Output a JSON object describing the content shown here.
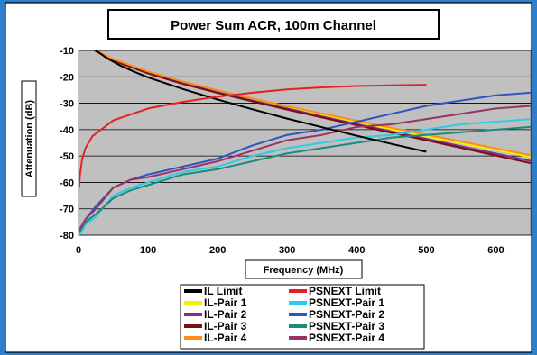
{
  "chart_data": {
    "type": "line",
    "title": "Power Sum ACR, 100m Channel",
    "xlabel": "Frequency (MHz)",
    "ylabel": "Attenuation (dB)",
    "xlim": [
      0,
      650
    ],
    "ylim": [
      -80,
      -10
    ],
    "x_ticks": [
      0,
      100,
      200,
      300,
      400,
      500,
      600
    ],
    "y_ticks": [
      -10,
      -20,
      -30,
      -40,
      -50,
      -60,
      -70,
      -80
    ],
    "grid": "horizontal",
    "legend_position": "bottom",
    "background_color": "#c0c0c0",
    "series": [
      {
        "name": "IL Limit",
        "color": "#000000",
        "x": [
          20,
          40,
          60,
          80,
          100,
          150,
          200,
          250,
          300,
          350,
          400,
          450,
          500
        ],
        "y": [
          -9,
          -12.8,
          -15.7,
          -18.1,
          -20.2,
          -24.6,
          -28.6,
          -32.3,
          -35.8,
          -39.1,
          -42.3,
          -45.4,
          -48.4
        ]
      },
      {
        "name": "PSNEXT Limit",
        "color": "#e82020",
        "x": [
          1,
          2,
          5,
          10,
          20,
          50,
          100,
          150,
          200,
          250,
          300,
          350,
          400,
          450,
          500
        ],
        "y": [
          -62,
          -57.5,
          -51.5,
          -47,
          -42.5,
          -36.5,
          -32,
          -29.5,
          -27.5,
          -26,
          -24.8,
          -24,
          -23.5,
          -23.2,
          -23
        ]
      },
      {
        "name": "IL-Pair 1",
        "color": "#f0f000",
        "x": [
          20,
          50,
          100,
          150,
          200,
          250,
          300,
          350,
          400,
          450,
          500,
          550,
          600,
          650
        ],
        "y": [
          -9.5,
          -13.5,
          -18.2,
          -22,
          -25.4,
          -28.5,
          -31.5,
          -34.4,
          -37.2,
          -39.9,
          -42.6,
          -45.2,
          -47.8,
          -50.4
        ]
      },
      {
        "name": "IL-Pair 2",
        "color": "#7b2d91",
        "x": [
          20,
          50,
          100,
          150,
          200,
          250,
          300,
          350,
          400,
          450,
          500,
          550,
          600,
          650
        ],
        "y": [
          -9.4,
          -13.7,
          -18.5,
          -22.4,
          -25.8,
          -29,
          -32,
          -35,
          -37.9,
          -40.7,
          -43.5,
          -46.3,
          -49.1,
          -51.9
        ]
      },
      {
        "name": "IL-Pair 3",
        "color": "#7a1010",
        "x": [
          20,
          50,
          100,
          150,
          200,
          250,
          300,
          350,
          400,
          450,
          500,
          550,
          600,
          650
        ],
        "y": [
          -9.6,
          -13.9,
          -18.7,
          -22.7,
          -26.1,
          -29.3,
          -32.4,
          -35.4,
          -38.3,
          -41.2,
          -44,
          -46.9,
          -49.8,
          -52.7
        ]
      },
      {
        "name": "IL-Pair 4",
        "color": "#ff8c1a",
        "x": [
          20,
          50,
          100,
          150,
          200,
          250,
          300,
          350,
          400,
          450,
          500,
          550,
          600,
          650
        ],
        "y": [
          -9.2,
          -13.3,
          -18,
          -21.8,
          -25.1,
          -28.2,
          -31.1,
          -33.9,
          -36.6,
          -39.3,
          -41.9,
          -44.5,
          -47.1,
          -49.7
        ]
      },
      {
        "name": "PSNEXT-Pair 1",
        "color": "#33c8e8",
        "x": [
          1,
          10,
          25,
          50,
          75,
          100,
          150,
          200,
          250,
          300,
          350,
          400,
          450,
          500,
          550,
          600,
          650
        ],
        "y": [
          -80,
          -76,
          -73,
          -65,
          -62,
          -60,
          -56,
          -54,
          -50,
          -47,
          -45,
          -43,
          -42,
          -40,
          -38,
          -37,
          -36
        ]
      },
      {
        "name": "PSNEXT-Pair 2",
        "color": "#2f54c0",
        "x": [
          1,
          10,
          25,
          50,
          75,
          100,
          150,
          200,
          250,
          300,
          350,
          400,
          450,
          500,
          550,
          600,
          650
        ],
        "y": [
          -79,
          -74,
          -69,
          -62,
          -59,
          -57,
          -54,
          -51,
          -46,
          -42,
          -40,
          -37,
          -34,
          -31,
          -29,
          -27,
          -26
        ]
      },
      {
        "name": "PSNEXT-Pair 3",
        "color": "#1a8a7a",
        "x": [
          1,
          10,
          25,
          50,
          75,
          100,
          150,
          200,
          250,
          300,
          350,
          400,
          450,
          500,
          550,
          600,
          650
        ],
        "y": [
          -79,
          -75,
          -72,
          -66,
          -63,
          -61,
          -57,
          -55,
          -52,
          -49,
          -47,
          -45,
          -43,
          -42,
          -41,
          -40,
          -39
        ]
      },
      {
        "name": "PSNEXT-Pair 4",
        "color": "#993366",
        "x": [
          1,
          10,
          25,
          50,
          75,
          100,
          150,
          200,
          250,
          300,
          350,
          400,
          450,
          500,
          550,
          600,
          650
        ],
        "y": [
          -78,
          -74,
          -70,
          -62,
          -59,
          -58,
          -55,
          -52,
          -48,
          -44,
          -42,
          -39,
          -38,
          -36,
          -34,
          -32,
          -31
        ]
      }
    ]
  }
}
